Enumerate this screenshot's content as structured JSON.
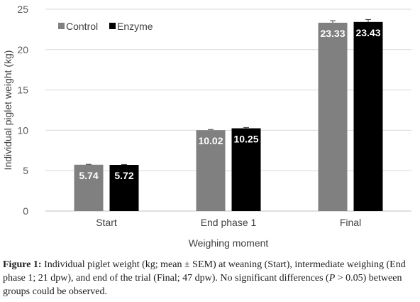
{
  "chart_data": {
    "type": "bar",
    "categories": [
      "Start",
      "End phase 1",
      "Final"
    ],
    "series": [
      {
        "name": "Control",
        "values": [
          5.74,
          10.02,
          23.33
        ],
        "sem": [
          0.05,
          0.08,
          0.25
        ],
        "color": "#808080"
      },
      {
        "name": "Enzyme",
        "values": [
          5.72,
          10.25,
          23.43
        ],
        "sem": [
          0.05,
          0.1,
          0.3
        ],
        "color": "#000000"
      }
    ],
    "value_labels": [
      [
        "5.74",
        "10.02",
        "23.33"
      ],
      [
        "5.72",
        "10.25",
        "23.43"
      ]
    ],
    "title": "",
    "xlabel": "Weighing moment",
    "ylabel": "Individual piglet weight (kg)",
    "ylim": [
      0,
      25
    ],
    "yticks": [
      0,
      5,
      10,
      15,
      20,
      25
    ],
    "grid": true,
    "legend_position": "top-left",
    "error_bars": "mean ± SEM"
  },
  "caption": {
    "label": "Figure 1:",
    "text_a": " Individual piglet weight (kg; mean ± SEM) at weaning (Start), intermediate weighing (End phase 1; 21 dpw), and end of the trial (Final; 47 dpw). No significant differences (",
    "p_symbol": "P",
    "text_b": " > 0.05) between groups could be observed."
  }
}
